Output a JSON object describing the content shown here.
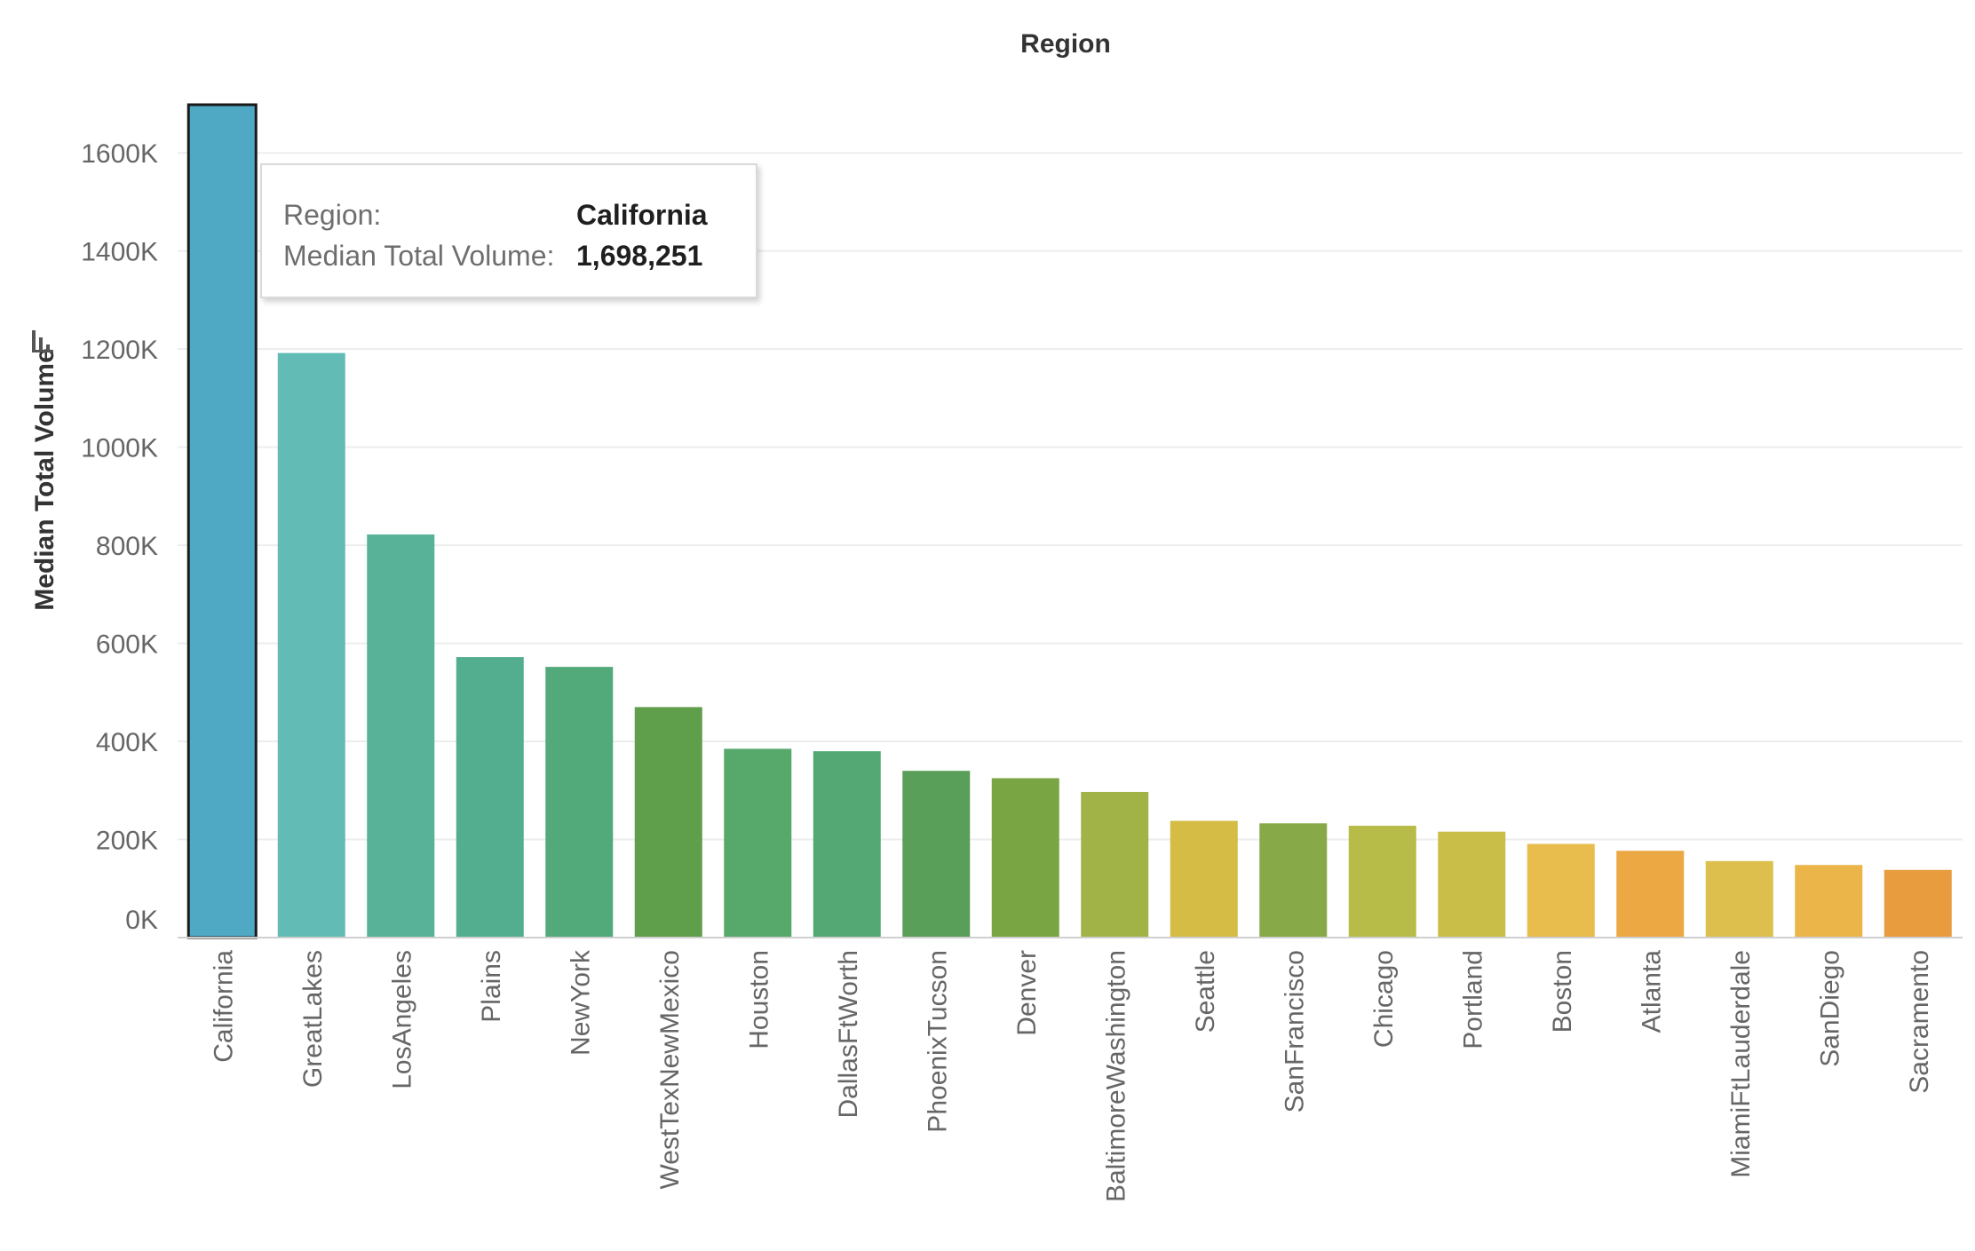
{
  "chart_data": {
    "type": "bar",
    "title": "Region",
    "xlabel": "",
    "ylabel": "Median Total Volume",
    "ylim": [
      0,
      1700000
    ],
    "yticks": [
      0,
      200000,
      400000,
      600000,
      800000,
      1000000,
      1200000,
      1400000,
      1600000
    ],
    "ytick_labels": [
      "0K",
      "200K",
      "400K",
      "600K",
      "800K",
      "1000K",
      "1200K",
      "1400K",
      "1600K"
    ],
    "grid": true,
    "categories": [
      "California",
      "GreatLakes",
      "LosAngeles",
      "Plains",
      "NewYork",
      "WestTexNewMexico",
      "Houston",
      "DallasFtWorth",
      "PhoenixTucson",
      "Denver",
      "BaltimoreWashington",
      "Seattle",
      "SanFrancisco",
      "Chicago",
      "Portland",
      "Boston",
      "Atlanta",
      "MiamiFtLauderdale",
      "SanDiego",
      "Sacramento"
    ],
    "values": [
      1698251,
      1192000,
      822000,
      572000,
      552000,
      470000,
      385000,
      380000,
      340000,
      325000,
      297000,
      238000,
      233000,
      228000,
      216000,
      191000,
      177000,
      156000,
      148000,
      138000
    ],
    "colors": [
      "#4fa8c4",
      "#62bbb4",
      "#57b297",
      "#53ae8f",
      "#52aa7a",
      "#5f9e4a",
      "#56a96b",
      "#54a873",
      "#5a9f59",
      "#79a543",
      "#a1b246",
      "#d4bc45",
      "#87a947",
      "#b7bb47",
      "#c9bf48",
      "#e8bc4d",
      "#eba843",
      "#dcbf4d",
      "#ecb54a",
      "#e99c3e"
    ],
    "highlighted": "California"
  },
  "tooltip": {
    "region_label": "Region:",
    "region_value": "California",
    "volume_label": "Median Total Volume:",
    "volume_value": "1,698,251"
  },
  "icons": {
    "axis_sort": "sort-icon"
  }
}
